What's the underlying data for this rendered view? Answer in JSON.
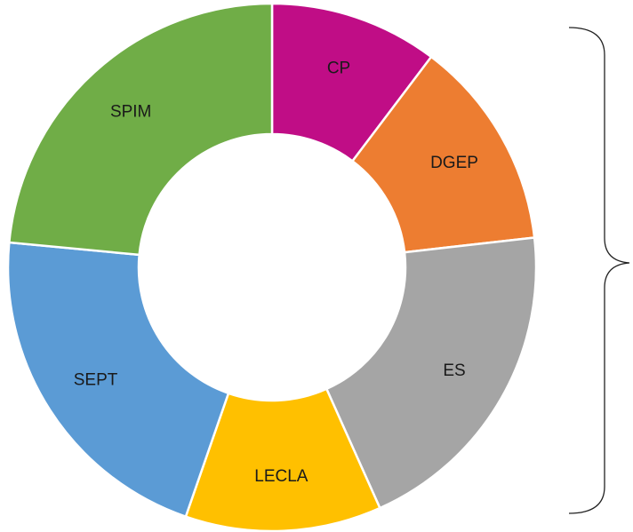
{
  "chart_data": {
    "type": "donut",
    "categories": [
      "CP",
      "DGEP",
      "ES",
      "LECLA",
      "SEPT",
      "SPIM"
    ],
    "values": [
      10.3,
      12.9,
      20.1,
      12.0,
      21.2,
      23.5
    ],
    "colors": [
      "#c00d86",
      "#ed7d31",
      "#a5a5a5",
      "#ffc000",
      "#5b9bd5",
      "#70ad47"
    ]
  }
}
